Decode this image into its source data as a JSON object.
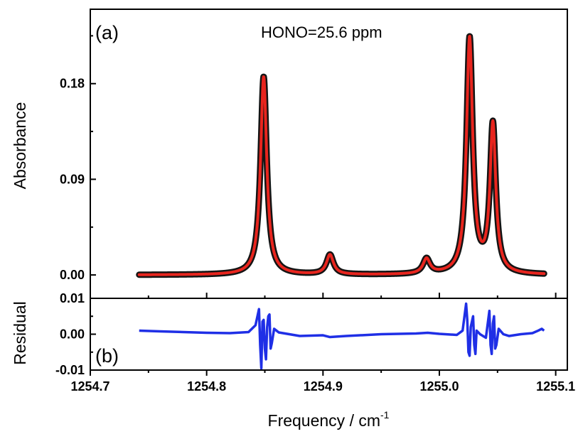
{
  "chart_data": [
    {
      "panel": "top",
      "type": "line",
      "panel_label": "(a)",
      "annotation": "HONO=25.6 ppm",
      "ylabel": "Absorbance",
      "xlim": [
        1254.7,
        1255.11
      ],
      "ylim": [
        -0.022,
        0.25
      ],
      "yticks": [
        0.0,
        0.09,
        0.18
      ],
      "ytick_labels": [
        "0.00",
        "0.09",
        "0.18"
      ],
      "grid": false,
      "peaks": [
        {
          "x": 1254.849,
          "height": 0.1865,
          "width": 0.0032
        },
        {
          "x": 1254.906,
          "height": 0.0185,
          "width": 0.0036
        },
        {
          "x": 1254.989,
          "height": 0.014,
          "width": 0.0036
        },
        {
          "x": 1255.026,
          "height": 0.2215,
          "width": 0.0032
        },
        {
          "x": 1255.046,
          "height": 0.1395,
          "width": 0.003
        }
      ],
      "x_range": [
        1254.742,
        1255.09
      ],
      "series": [
        {
          "role": "measured",
          "color": "#141414"
        },
        {
          "role": "fit",
          "color": "#e8251e"
        }
      ]
    },
    {
      "panel": "bottom",
      "type": "line",
      "panel_label": "(b)",
      "ylabel": "Residual",
      "xlabel": "Frequency / cm",
      "xlabel_sup": "-1",
      "xlim": [
        1254.7,
        1255.11
      ],
      "ylim": [
        -0.01,
        0.01
      ],
      "yticks": [
        -0.01,
        0.0,
        0.01
      ],
      "ytick_labels": [
        "-0.01",
        "0.00",
        "0.01"
      ],
      "xticks": [
        1254.7,
        1254.8,
        1254.9,
        1255.0,
        1255.1
      ],
      "xtick_labels": [
        "1254.7",
        "1254.8",
        "1254.9",
        "1255.0",
        "1255.1"
      ],
      "grid": false,
      "residual_points": [
        [
          1254.742,
          0.001
        ],
        [
          1254.76,
          0.0008
        ],
        [
          1254.78,
          0.0006
        ],
        [
          1254.8,
          0.0004
        ],
        [
          1254.82,
          0.0003
        ],
        [
          1254.836,
          0.0006
        ],
        [
          1254.842,
          0.0025
        ],
        [
          1254.845,
          0.007
        ],
        [
          1254.846,
          -0.003
        ],
        [
          1254.847,
          -0.0095
        ],
        [
          1254.848,
          0.0035
        ],
        [
          1254.849,
          0.004
        ],
        [
          1254.85,
          -0.004
        ],
        [
          1254.851,
          -0.007
        ],
        [
          1254.852,
          0.002
        ],
        [
          1254.853,
          0.005
        ],
        [
          1254.854,
          0.0055
        ],
        [
          1254.855,
          -0.004
        ],
        [
          1254.856,
          -0.0025
        ],
        [
          1254.858,
          0.0015
        ],
        [
          1254.862,
          0.0005
        ],
        [
          1254.88,
          -0.0005
        ],
        [
          1254.9,
          -0.0003
        ],
        [
          1254.906,
          -0.0008
        ],
        [
          1254.92,
          -0.0005
        ],
        [
          1254.95,
          0.0
        ],
        [
          1254.98,
          0.0002
        ],
        [
          1254.99,
          0.0004
        ],
        [
          1255.0,
          0.0001
        ],
        [
          1255.015,
          -0.0002
        ],
        [
          1255.02,
          0.001
        ],
        [
          1255.022,
          0.006
        ],
        [
          1255.023,
          0.0085
        ],
        [
          1255.024,
          0.004
        ],
        [
          1255.025,
          -0.005
        ],
        [
          1255.026,
          -0.006
        ],
        [
          1255.027,
          0.002
        ],
        [
          1255.029,
          0.005
        ],
        [
          1255.03,
          -0.003
        ],
        [
          1255.031,
          -0.0055
        ],
        [
          1255.032,
          0.001
        ],
        [
          1255.035,
          0.0
        ],
        [
          1255.04,
          -0.001
        ],
        [
          1255.042,
          0.004
        ],
        [
          1255.043,
          0.0065
        ],
        [
          1255.044,
          -0.003
        ],
        [
          1255.045,
          -0.0055
        ],
        [
          1255.046,
          0.003
        ],
        [
          1255.047,
          0.005
        ],
        [
          1255.048,
          -0.004
        ],
        [
          1255.049,
          -0.003
        ],
        [
          1255.051,
          0.0015
        ],
        [
          1255.055,
          0.0
        ],
        [
          1255.06,
          -0.0005
        ],
        [
          1255.07,
          0.0
        ],
        [
          1255.08,
          0.0003
        ],
        [
          1255.085,
          0.001
        ],
        [
          1255.088,
          0.0015
        ],
        [
          1255.09,
          0.001
        ]
      ],
      "series": [
        {
          "role": "residual",
          "color": "#1f2fe6"
        }
      ]
    }
  ]
}
